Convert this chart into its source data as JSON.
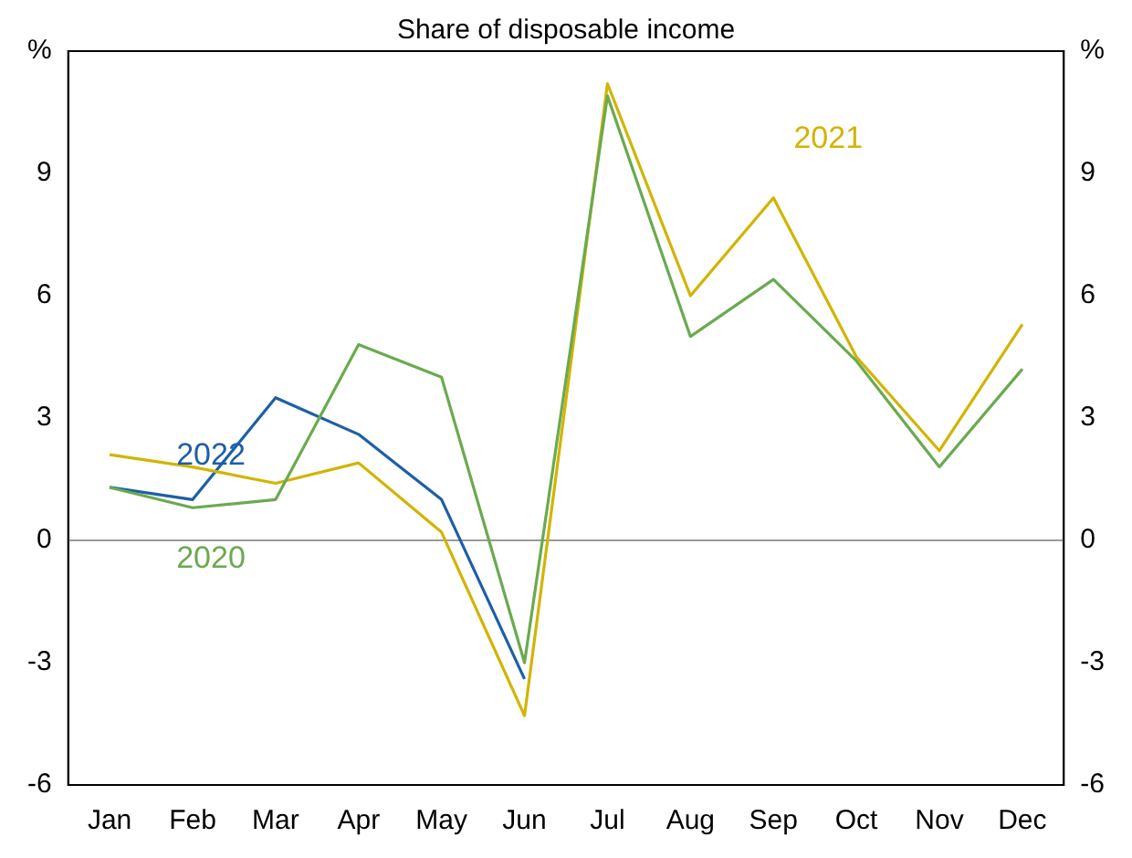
{
  "chart_data": {
    "type": "line",
    "title": "Share of disposable income",
    "categories": [
      "Jan",
      "Feb",
      "Mar",
      "Apr",
      "May",
      "Jun",
      "Jul",
      "Aug",
      "Sep",
      "Oct",
      "Nov",
      "Dec"
    ],
    "series": [
      {
        "name": "2020",
        "color": "#6aaa4f",
        "values": [
          1.3,
          0.8,
          1.0,
          4.8,
          4.0,
          -3.0,
          10.9,
          5.0,
          6.4,
          4.4,
          1.8,
          4.2
        ]
      },
      {
        "name": "2021",
        "color": "#d2b400",
        "values": [
          2.1,
          1.8,
          1.4,
          1.9,
          0.2,
          -4.3,
          11.2,
          6.0,
          8.4,
          4.5,
          2.2,
          5.3
        ]
      },
      {
        "name": "2022",
        "color": "#1d5fa6",
        "values": [
          1.3,
          1.0,
          3.5,
          2.6,
          1.0,
          -3.4,
          null,
          null,
          null,
          null,
          null,
          null
        ]
      }
    ],
    "ylim": [
      -6,
      12
    ],
    "yticks": [
      -6,
      -3,
      0,
      3,
      6,
      9,
      {
        "value": 12,
        "label": "%"
      }
    ],
    "y2lim": [
      -6,
      12
    ],
    "y2ticks": [
      -6,
      -3,
      0,
      3,
      6,
      9,
      {
        "value": 12,
        "label": "%"
      }
    ],
    "ref_lines": [
      {
        "axis": "y",
        "value": 0,
        "color": "#9a9a9a"
      }
    ],
    "grid": false,
    "legend": false,
    "marker": "none",
    "line_style": "solid"
  }
}
